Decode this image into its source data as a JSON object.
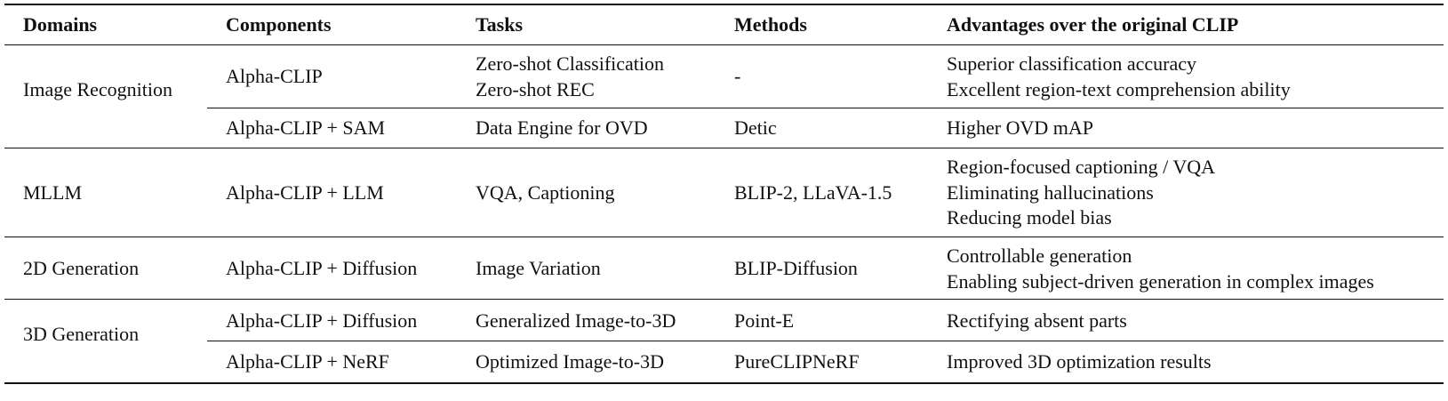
{
  "headers": [
    "Domains",
    "Components",
    "Tasks",
    "Methods",
    "Advantages over the original CLIP"
  ],
  "groups": [
    {
      "domain": "Image Recognition",
      "rows": [
        {
          "component": "Alpha-CLIP",
          "tasks": [
            "Zero-shot Classification",
            "Zero-shot REC"
          ],
          "method": "-",
          "advantages": [
            "Superior classification accuracy",
            "Excellent region-text comprehension ability"
          ]
        },
        {
          "component": "Alpha-CLIP + SAM",
          "tasks": [
            "Data Engine for OVD"
          ],
          "method": "Detic",
          "advantages": [
            "Higher OVD mAP"
          ]
        }
      ]
    },
    {
      "domain": "MLLM",
      "rows": [
        {
          "component": "Alpha-CLIP + LLM",
          "tasks": [
            "VQA, Captioning"
          ],
          "method": "BLIP-2, LLaVA-1.5",
          "advantages": [
            "Region-focused captioning / VQA",
            "Eliminating hallucinations",
            "Reducing model bias"
          ]
        }
      ]
    },
    {
      "domain": "2D Generation",
      "rows": [
        {
          "component": "Alpha-CLIP + Diffusion",
          "tasks": [
            "Image Variation"
          ],
          "method": "BLIP-Diffusion",
          "advantages": [
            "Controllable generation",
            "Enabling subject-driven generation in complex images"
          ]
        }
      ]
    },
    {
      "domain": "3D Generation",
      "rows": [
        {
          "component": "Alpha-CLIP + Diffusion",
          "tasks": [
            "Generalized Image-to-3D"
          ],
          "method": "Point-E",
          "advantages": [
            "Rectifying absent parts"
          ]
        },
        {
          "component": "Alpha-CLIP + NeRF",
          "tasks": [
            "Optimized Image-to-3D"
          ],
          "method": "PureCLIPNeRF",
          "advantages": [
            "Improved 3D optimization results"
          ]
        }
      ]
    }
  ]
}
